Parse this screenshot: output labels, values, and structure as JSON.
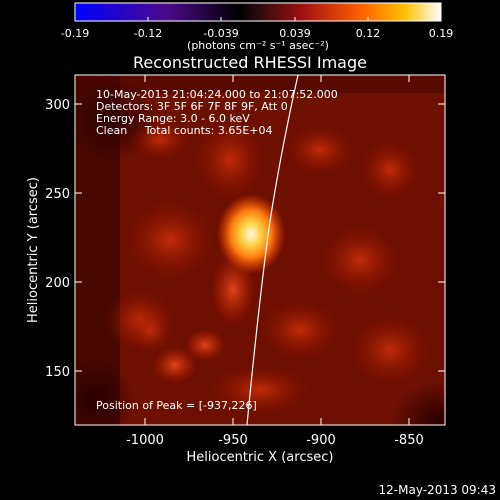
{
  "colorbar": {
    "ticks": [
      "-0.19",
      "-0.12",
      "-0.039",
      "0.039",
      "0.12",
      "0.19"
    ],
    "units": "(photons cm⁻² s⁻¹ asec⁻²)"
  },
  "plot": {
    "title": "Reconstructed RHESSI Image",
    "info": [
      "10-May-2013 21:04:24.000 to 21:07:52.000",
      "Detectors: 3F 5F 6F 7F 8F 9F, Att 0",
      "Energy Range: 3.0 - 6.0 keV",
      "Clean     Total counts: 3.65E+04"
    ],
    "peak_text": "Position of Peak = [-937,226]",
    "xlabel": "Heliocentric X (arcsec)",
    "ylabel": "Heliocentric Y (arcsec)",
    "x_ticks": [
      "-1000",
      "-950",
      "-900",
      "-850"
    ],
    "y_ticks": [
      "150",
      "200",
      "250",
      "300"
    ],
    "colors": {
      "background": "#000000",
      "limb": "#ffffff",
      "peak": "#fff3c0",
      "base": "#6e0f00"
    }
  },
  "footer": {
    "timestamp": "12-May-2013 09:43"
  }
}
